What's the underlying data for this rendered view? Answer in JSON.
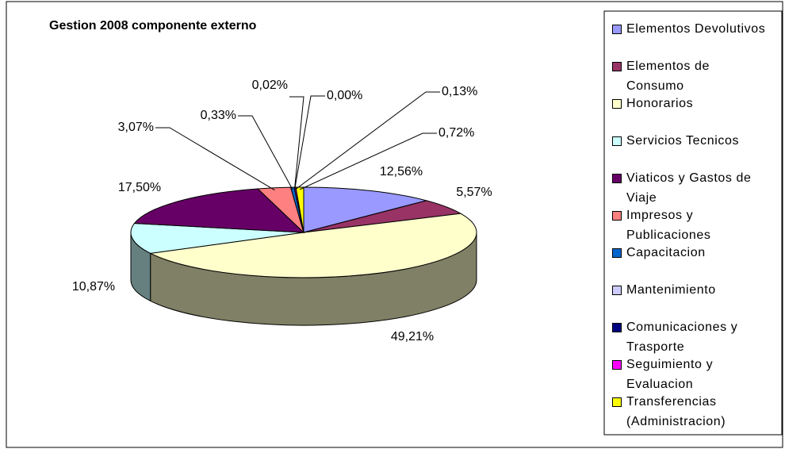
{
  "chart_data": {
    "type": "pie",
    "title": "Gestion 2008 componente externo",
    "categories": [
      "Elementos Devolutivos",
      "Elementos de Consumo",
      "Honorarios",
      "Servicios Tecnicos",
      "Viaticos y Gastos de Viaje",
      "Impresos y Publicaciones",
      "Capacitacion",
      "Mantenimiento",
      "Comunicaciones y Trasporte",
      "Seguimiento y Evaluacion",
      "Transferencias (Administracion)"
    ],
    "values": [
      12.56,
      5.57,
      49.21,
      10.87,
      17.5,
      3.07,
      0.33,
      0.02,
      0.0,
      0.13,
      0.72
    ],
    "value_labels": [
      "12,56%",
      "5,57%",
      "49,21%",
      "10,87%",
      "17,50%",
      "3,07%",
      "0,33%",
      "0,02%",
      "0,00%",
      "0,13%",
      "0,72%"
    ],
    "colors": [
      "#9999ff",
      "#993366",
      "#ffffcc",
      "#ccffff",
      "#660066",
      "#ff8080",
      "#0066cc",
      "#ccccff",
      "#000080",
      "#ff00ff",
      "#ffff00"
    ],
    "legend": "right"
  }
}
